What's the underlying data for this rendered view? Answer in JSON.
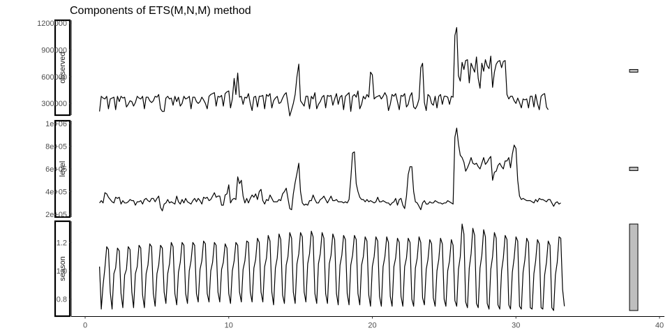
{
  "chart_data": {
    "type": "line",
    "title": "Components of ETS(M,N,M) method",
    "xlabel": "",
    "ylabel": "",
    "xlim": [
      0,
      40
    ],
    "x_ticks": [
      0,
      10,
      20,
      30,
      40
    ],
    "x_tick_labels": [
      "0",
      "10",
      "20",
      "30",
      "40"
    ],
    "x_start": 1,
    "x_step": 0.125,
    "grid": false,
    "panels": [
      {
        "name": "observed",
        "ylim": [
          200000,
          1200000
        ],
        "y_ticks": [
          300000,
          600000,
          900000,
          1200000
        ],
        "y_tick_labels": [
          "300000",
          "600000",
          "900000",
          "1200000"
        ],
        "scale_bar_range": [
          650000,
          680000
        ],
        "values": [
          210000,
          380000,
          360000,
          350000,
          380000,
          240000,
          350000,
          360000,
          370000,
          230000,
          380000,
          320000,
          380000,
          360000,
          370000,
          260000,
          290000,
          330000,
          320000,
          270000,
          310000,
          380000,
          360000,
          350000,
          380000,
          240000,
          370000,
          370000,
          330000,
          310000,
          330000,
          380000,
          370000,
          400000,
          240000,
          210000,
          210000,
          360000,
          380000,
          350000,
          360000,
          280000,
          380000,
          320000,
          370000,
          270000,
          300000,
          380000,
          350000,
          360000,
          380000,
          240000,
          370000,
          370000,
          320000,
          300000,
          320000,
          370000,
          340000,
          300000,
          240000,
          380000,
          400000,
          410000,
          420000,
          270000,
          380000,
          370000,
          390000,
          270000,
          410000,
          430000,
          440000,
          250000,
          350000,
          580000,
          400000,
          640000,
          370000,
          380000,
          290000,
          370000,
          360000,
          410000,
          300000,
          220000,
          370000,
          380000,
          260000,
          380000,
          380000,
          390000,
          240000,
          400000,
          380000,
          410000,
          250000,
          330000,
          360000,
          380000,
          300000,
          310000,
          360000,
          400000,
          420000,
          300000,
          160000,
          230000,
          300000,
          400000,
          600000,
          740000,
          330000,
          300000,
          270000,
          380000,
          380000,
          240000,
          380000,
          350000,
          420000,
          240000,
          290000,
          320000,
          370000,
          390000,
          250000,
          390000,
          380000,
          390000,
          280000,
          350000,
          410000,
          290000,
          370000,
          390000,
          230000,
          380000,
          400000,
          420000,
          210000,
          380000,
          400000,
          370000,
          440000,
          240000,
          290000,
          380000,
          350000,
          400000,
          370000,
          650000,
          620000,
          350000,
          370000,
          380000,
          390000,
          350000,
          380000,
          420000,
          380000,
          220000,
          290000,
          400000,
          380000,
          410000,
          320000,
          230000,
          390000,
          380000,
          410000,
          260000,
          290000,
          380000,
          420000,
          260000,
          240000,
          280000,
          350000,
          700000,
          750000,
          310000,
          220000,
          400000,
          380000,
          300000,
          280000,
          380000,
          250000,
          380000,
          400000,
          290000,
          380000,
          380000,
          370000,
          290000,
          380000,
          370000,
          1060000,
          1150000,
          610000,
          550000,
          760000,
          680000,
          780000,
          790000,
          530000,
          750000,
          700000,
          650000,
          820000,
          580000,
          470000,
          750000,
          660000,
          790000,
          720000,
          690000,
          830000,
          480000,
          650000,
          740000,
          770000,
          780000,
          700000,
          770000,
          780000,
          400000,
          350000,
          380000,
          380000,
          330000,
          300000,
          360000,
          310000,
          250000,
          350000,
          340000,
          350000,
          250000,
          380000,
          380000,
          260000,
          400000,
          300000,
          230000,
          380000,
          400000,
          410000,
          260000,
          230000
        ]
      },
      {
        "name": "level",
        "ylim": [
          200000,
          1000000
        ],
        "y_ticks": [
          200000,
          400000,
          600000,
          800000,
          1000000
        ],
        "y_tick_labels": [
          "2e+05",
          "4e+05",
          "6e+05",
          "8e+05",
          "1e+06"
        ],
        "scale_bar_range": [
          585000,
          615000
        ],
        "values": [
          300000,
          320000,
          300000,
          390000,
          380000,
          350000,
          330000,
          310000,
          300000,
          350000,
          340000,
          350000,
          290000,
          320000,
          300000,
          300000,
          310000,
          330000,
          320000,
          320000,
          280000,
          310000,
          310000,
          320000,
          290000,
          330000,
          340000,
          320000,
          310000,
          340000,
          340000,
          310000,
          340000,
          360000,
          260000,
          230000,
          290000,
          300000,
          330000,
          300000,
          310000,
          300000,
          290000,
          360000,
          310000,
          290000,
          330000,
          300000,
          340000,
          310000,
          300000,
          290000,
          320000,
          340000,
          310000,
          340000,
          320000,
          290000,
          350000,
          340000,
          350000,
          320000,
          330000,
          360000,
          390000,
          350000,
          360000,
          360000,
          280000,
          280000,
          370000,
          380000,
          460000,
          300000,
          330000,
          340000,
          330000,
          530000,
          470000,
          500000,
          360000,
          300000,
          340000,
          300000,
          340000,
          370000,
          350000,
          380000,
          330000,
          400000,
          420000,
          320000,
          290000,
          330000,
          320000,
          370000,
          340000,
          310000,
          310000,
          310000,
          330000,
          320000,
          380000,
          400000,
          430000,
          340000,
          250000,
          240000,
          380000,
          480000,
          560000,
          650000,
          400000,
          300000,
          280000,
          290000,
          280000,
          320000,
          320000,
          370000,
          330000,
          300000,
          300000,
          330000,
          340000,
          360000,
          330000,
          300000,
          330000,
          360000,
          320000,
          320000,
          330000,
          310000,
          310000,
          310000,
          300000,
          310000,
          300000,
          330000,
          510000,
          740000,
          750000,
          470000,
          400000,
          350000,
          330000,
          330000,
          310000,
          330000,
          310000,
          320000,
          310000,
          300000,
          310000,
          350000,
          310000,
          310000,
          320000,
          310000,
          300000,
          300000,
          280000,
          300000,
          310000,
          340000,
          280000,
          330000,
          340000,
          280000,
          250000,
          360000,
          550000,
          620000,
          620000,
          400000,
          310000,
          300000,
          270000,
          240000,
          300000,
          320000,
          290000,
          290000,
          310000,
          300000,
          300000,
          320000,
          310000,
          300000,
          300000,
          290000,
          300000,
          300000,
          320000,
          310000,
          300000,
          290000,
          880000,
          960000,
          820000,
          720000,
          700000,
          660000,
          580000,
          610000,
          650000,
          700000,
          650000,
          640000,
          650000,
          620000,
          600000,
          650000,
          700000,
          640000,
          660000,
          690000,
          710000,
          500000,
          570000,
          580000,
          630000,
          650000,
          620000,
          600000,
          670000,
          670000,
          700000,
          610000,
          730000,
          810000,
          780000,
          500000,
          360000,
          330000,
          340000,
          330000,
          320000,
          320000,
          320000,
          310000,
          300000,
          330000,
          310000,
          340000,
          330000,
          330000,
          320000,
          310000,
          330000,
          330000,
          300000,
          270000,
          300000,
          310000,
          290000,
          300000
        ]
      },
      {
        "name": "season",
        "ylim": [
          0.7,
          1.33
        ],
        "y_ticks": [
          0.8,
          1.0,
          1.2
        ],
        "y_tick_labels": [
          "0.8",
          "1.0",
          "1.2"
        ],
        "scale_bar_range": [
          0.72,
          1.33
        ],
        "values": [
          1.03,
          0.73,
          0.9,
          1.02,
          1.17,
          1.15,
          0.85,
          0.73,
          0.98,
          1.02,
          1.16,
          1.14,
          0.84,
          0.74,
          0.97,
          1.01,
          1.17,
          1.15,
          0.85,
          0.74,
          0.98,
          1.03,
          1.18,
          1.16,
          0.83,
          0.74,
          0.98,
          1.04,
          1.19,
          1.17,
          0.84,
          0.75,
          0.98,
          1.04,
          1.18,
          1.16,
          0.85,
          0.77,
          0.98,
          1.05,
          1.2,
          1.17,
          0.84,
          0.76,
          0.99,
          1.06,
          1.2,
          1.18,
          0.84,
          0.77,
          1.0,
          1.07,
          1.2,
          1.18,
          0.84,
          0.78,
          1.01,
          1.07,
          1.21,
          1.19,
          0.84,
          0.78,
          1.0,
          1.06,
          1.2,
          1.18,
          0.85,
          0.78,
          1.01,
          1.06,
          1.19,
          1.16,
          0.84,
          0.77,
          1.0,
          1.07,
          1.2,
          1.18,
          0.85,
          0.78,
          1.01,
          1.07,
          1.21,
          1.2,
          0.85,
          0.78,
          1.02,
          1.08,
          1.23,
          1.2,
          0.85,
          0.78,
          1.03,
          1.09,
          1.25,
          1.21,
          0.85,
          0.76,
          1.02,
          1.09,
          1.26,
          1.22,
          0.83,
          0.77,
          1.04,
          1.1,
          1.27,
          1.23,
          0.85,
          0.77,
          1.05,
          1.12,
          1.27,
          1.24,
          0.85,
          0.78,
          1.05,
          1.12,
          1.28,
          1.24,
          0.84,
          0.77,
          1.05,
          1.12,
          1.27,
          1.23,
          0.84,
          0.77,
          1.05,
          1.11,
          1.26,
          1.22,
          0.84,
          0.76,
          1.04,
          1.11,
          1.25,
          1.22,
          0.84,
          0.76,
          1.04,
          1.11,
          1.25,
          1.22,
          0.84,
          0.76,
          1.04,
          1.1,
          1.24,
          1.21,
          0.83,
          0.75,
          1.03,
          1.1,
          1.24,
          1.21,
          0.82,
          0.75,
          1.03,
          1.1,
          1.24,
          1.2,
          0.82,
          0.75,
          1.03,
          1.09,
          1.23,
          1.2,
          0.82,
          0.75,
          1.03,
          1.09,
          1.23,
          1.2,
          0.8,
          0.75,
          1.02,
          1.09,
          1.24,
          1.2,
          0.81,
          0.76,
          1.01,
          1.08,
          1.22,
          1.19,
          0.81,
          0.75,
          1.0,
          1.08,
          1.23,
          1.19,
          0.8,
          0.75,
          1.0,
          1.07,
          1.22,
          1.18,
          0.79,
          0.75,
          1.01,
          1.1,
          1.33,
          1.26,
          0.78,
          0.74,
          1.02,
          1.12,
          1.3,
          1.25,
          0.77,
          0.74,
          1.02,
          1.11,
          1.29,
          1.24,
          0.77,
          0.73,
          1.01,
          1.1,
          1.27,
          1.23,
          0.76,
          0.73,
          1.0,
          1.09,
          1.25,
          1.22,
          0.76,
          0.73,
          0.99,
          1.09,
          1.24,
          1.21,
          0.75,
          0.73,
          0.99,
          1.08,
          1.23,
          1.2,
          0.74,
          0.73,
          0.98,
          1.07,
          1.22,
          1.19,
          0.74,
          0.73,
          0.97,
          1.06,
          1.21,
          1.18,
          0.74,
          0.72,
          0.97,
          1.06,
          1.24,
          1.23,
          0.87,
          0.75
        ]
      }
    ]
  }
}
